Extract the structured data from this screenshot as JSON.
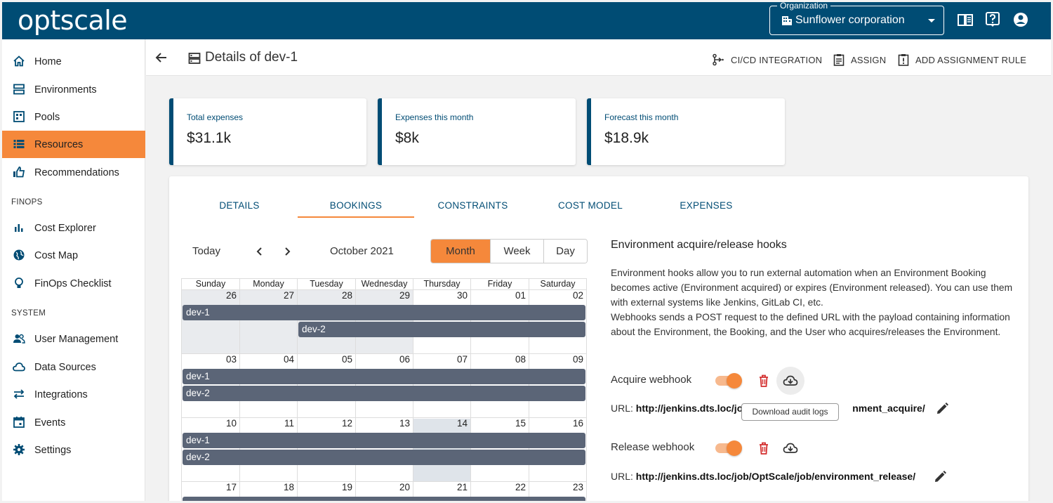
{
  "app": {
    "logo": "optscale"
  },
  "org": {
    "legend": "Organization",
    "value": "Sunflower corporation"
  },
  "topbar_icons": [
    "documentation-icon",
    "help-icon",
    "account-icon"
  ],
  "sidebar": {
    "items": [
      {
        "label": "Home",
        "icon": "home-icon"
      },
      {
        "label": "Environments",
        "icon": "environments-icon"
      },
      {
        "label": "Pools",
        "icon": "pools-icon"
      },
      {
        "label": "Resources",
        "icon": "resources-icon",
        "active": true
      },
      {
        "label": "Recommendations",
        "icon": "thumbs-up-icon"
      }
    ],
    "finops_title": "FINOPS",
    "finops": [
      {
        "label": "Cost Explorer",
        "icon": "bar-chart-icon"
      },
      {
        "label": "Cost Map",
        "icon": "globe-icon"
      },
      {
        "label": "FinOps Checklist",
        "icon": "lightbulb-icon"
      }
    ],
    "system_title": "SYSTEM",
    "system": [
      {
        "label": "User Management",
        "icon": "users-icon"
      },
      {
        "label": "Data Sources",
        "icon": "cloud-icon"
      },
      {
        "label": "Integrations",
        "icon": "swap-icon"
      },
      {
        "label": "Events",
        "icon": "calendar-icon"
      },
      {
        "label": "Settings",
        "icon": "gear-icon"
      }
    ]
  },
  "header": {
    "title": "Details of dev-1",
    "actions": {
      "cicd": "CI/CD INTEGRATION",
      "assign": "ASSIGN",
      "rule": "ADD ASSIGNMENT RULE"
    }
  },
  "cards": [
    {
      "label": "Total expenses",
      "value": "$31.1k"
    },
    {
      "label": "Expenses this month",
      "value": "$8k"
    },
    {
      "label": "Forecast this month",
      "value": "$18.9k"
    }
  ],
  "tabs": [
    "DETAILS",
    "BOOKINGS",
    "CONSTRAINTS",
    "COST MODEL",
    "EXPENSES"
  ],
  "active_tab": "BOOKINGS",
  "calendar": {
    "today_label": "Today",
    "month_label": "October 2021",
    "views": [
      "Month",
      "Week",
      "Day"
    ],
    "active_view": "Month",
    "weekdays": [
      "Sunday",
      "Monday",
      "Tuesday",
      "Wednesday",
      "Thursday",
      "Friday",
      "Saturday"
    ],
    "weeks": [
      [
        "26",
        "27",
        "28",
        "29",
        "30",
        "01",
        "02"
      ],
      [
        "03",
        "04",
        "05",
        "06",
        "07",
        "08",
        "09"
      ],
      [
        "10",
        "11",
        "12",
        "13",
        "14",
        "15",
        "16"
      ],
      [
        "17",
        "18",
        "19",
        "20",
        "21",
        "22",
        "23"
      ]
    ],
    "events": {
      "dev1": "dev-1",
      "dev2": "dev-2"
    }
  },
  "hooks": {
    "title": "Environment acquire/release hooks",
    "description": "Environment hooks allow you to run external automation when an Environment Booking becomes active (Environment acquired) or expires (Environment released). You can use them with external systems like Jenkins, GitLab CI, etc.\nWebhooks sends a POST request to the defined URL with the payload containing information about the Environment, the Booking, and the User who acquires/releases the Environment.",
    "acquire": {
      "label": "Acquire webhook",
      "enabled": true,
      "url_prefix": "URL:",
      "url_start": "http://jenkins.dts.loc/jo",
      "url_end": "nment_acquire/"
    },
    "release": {
      "label": "Release webhook",
      "enabled": true,
      "url_prefix": "URL:",
      "url": "http://jenkins.dts.loc/job/OptScale/job/environment_release/"
    },
    "tooltip": "Download audit logs"
  },
  "colors": {
    "brand": "#004c74",
    "accent": "#f5883b",
    "event": "#5b6577"
  }
}
